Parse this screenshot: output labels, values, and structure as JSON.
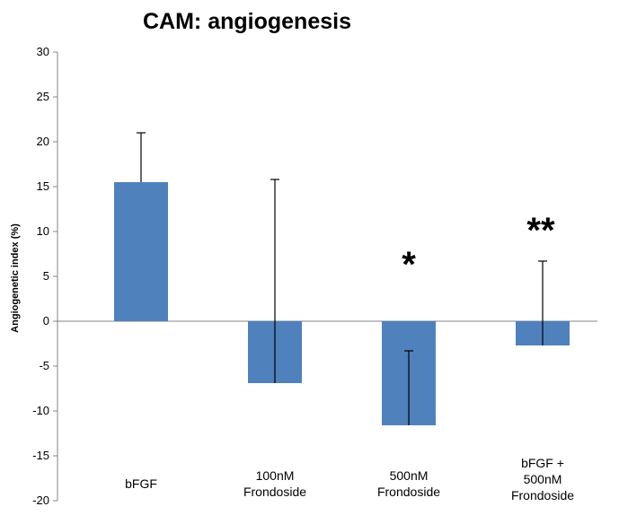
{
  "chart_data": {
    "type": "bar",
    "title": "CAM: angiogenesis",
    "xlabel": "",
    "ylabel": "Angiogenetic index (%)",
    "ylim": [
      -20,
      30
    ],
    "yticks": [
      30,
      25,
      20,
      15,
      10,
      5,
      0,
      -5,
      -10,
      -15,
      -20
    ],
    "categories": [
      [
        "bFGF"
      ],
      [
        "100nM",
        "Frondoside"
      ],
      [
        "500nM",
        "Frondoside"
      ],
      [
        "bFGF +",
        "500nM",
        "Frondoside"
      ]
    ],
    "values": [
      15.5,
      -6.9,
      -11.6,
      -2.7
    ],
    "error_bars": [
      {
        "from": 15.5,
        "to": 21.0
      },
      {
        "from": -6.9,
        "to": 15.8
      },
      {
        "from": -11.6,
        "to": -3.3
      },
      {
        "from": -2.7,
        "to": 6.7
      }
    ],
    "significance": [
      "",
      "",
      "*",
      "**"
    ],
    "bar_color": "#4f81bd",
    "grid": false,
    "legend": "none"
  }
}
